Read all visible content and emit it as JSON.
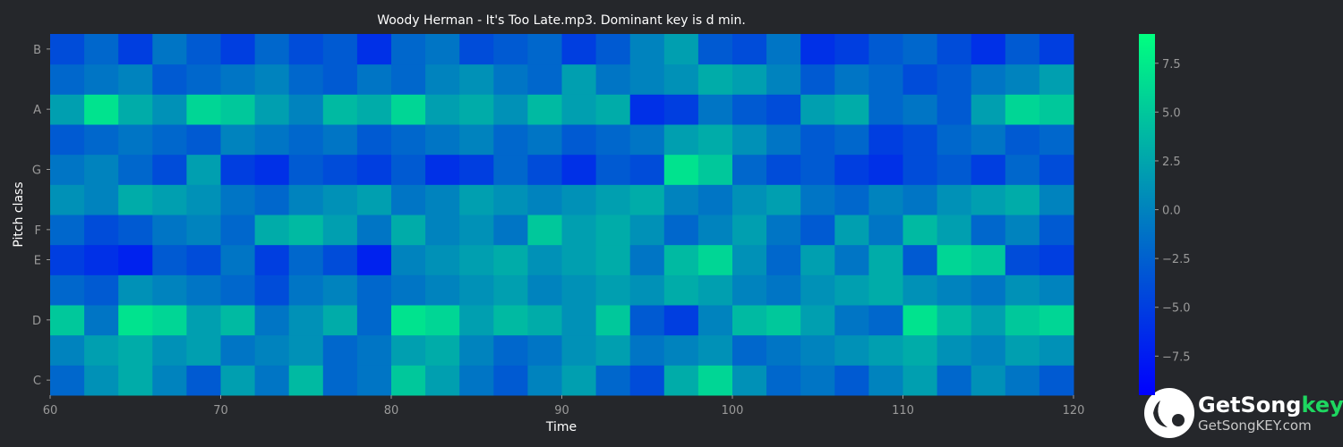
{
  "chart_data": {
    "type": "heatmap",
    "title": "Woody Herman - It's Too Late.mp3. Dominant key is d min.",
    "xlabel": "Time",
    "ylabel": "Pitch class",
    "x": [
      61,
      63,
      65,
      67,
      69,
      71,
      73,
      75,
      77,
      79,
      81,
      83,
      85,
      87,
      89,
      91,
      93,
      95,
      97,
      99,
      101,
      103,
      105,
      107,
      109,
      111,
      113,
      115,
      117,
      119
    ],
    "categories": [
      "C",
      null,
      "D",
      null,
      "E",
      "F",
      null,
      "G",
      null,
      "A",
      null,
      "B"
    ],
    "z": [
      [
        -2,
        1,
        3,
        0,
        -3,
        2,
        -1,
        4,
        -2,
        -1,
        5,
        2,
        -1,
        -3,
        0,
        2,
        -2,
        -4,
        3,
        6,
        1,
        -2,
        -1,
        -3,
        0,
        2,
        -2,
        1,
        -1,
        -3
      ],
      [
        0,
        2,
        3,
        1,
        2,
        -1,
        0,
        1,
        -2,
        -1,
        2,
        3,
        0,
        -2,
        -1,
        1,
        2,
        -1,
        0,
        1,
        -2,
        -1,
        0,
        1,
        2,
        3,
        1,
        0,
        2,
        1
      ],
      [
        5,
        -1,
        7,
        6,
        2,
        4,
        -1,
        1,
        3,
        -2,
        7,
        6,
        2,
        4,
        3,
        1,
        5,
        -3,
        -5,
        0,
        4,
        5,
        2,
        -1,
        -2,
        7,
        4,
        2,
        5,
        6
      ],
      [
        -2,
        -3,
        1,
        0,
        -1,
        -2,
        -4,
        -1,
        0,
        -2,
        -1,
        0,
        1,
        2,
        0,
        1,
        2,
        1,
        3,
        2,
        0,
        -1,
        1,
        2,
        3,
        1,
        0,
        -1,
        1,
        0
      ],
      [
        -5,
        -6,
        -7,
        -3,
        -4,
        -1,
        -5,
        -2,
        -4,
        -7,
        0,
        1,
        2,
        3,
        1,
        2,
        3,
        -1,
        4,
        6,
        1,
        -2,
        2,
        -1,
        3,
        -3,
        6,
        5,
        -4,
        -5
      ],
      [
        -2,
        -4,
        -3,
        -1,
        0,
        -2,
        3,
        4,
        2,
        -1,
        3,
        0,
        1,
        -1,
        5,
        2,
        3,
        1,
        -2,
        0,
        2,
        -1,
        -3,
        2,
        -1,
        4,
        2,
        -2,
        0,
        -3
      ],
      [
        1,
        0,
        3,
        2,
        1,
        -1,
        -2,
        0,
        1,
        2,
        -1,
        0,
        2,
        1,
        0,
        1,
        2,
        3,
        0,
        -1,
        1,
        2,
        -1,
        -2,
        0,
        -1,
        1,
        2,
        3,
        0
      ],
      [
        -1,
        0,
        -2,
        -4,
        2,
        -5,
        -6,
        -3,
        -4,
        -5,
        -3,
        -6,
        -5,
        -2,
        -4,
        -6,
        -3,
        -4,
        7,
        5,
        -2,
        -4,
        -3,
        -5,
        -6,
        -4,
        -3,
        -5,
        -2,
        -4
      ],
      [
        -3,
        -2,
        -1,
        -2,
        -3,
        0,
        -1,
        -2,
        -1,
        -3,
        -2,
        -1,
        0,
        -2,
        -1,
        -3,
        -2,
        -1,
        2,
        3,
        1,
        -1,
        -3,
        -2,
        -5,
        -4,
        -2,
        -1,
        -3,
        -2
      ],
      [
        2,
        7,
        3,
        1,
        6,
        5,
        2,
        0,
        4,
        3,
        6,
        2,
        3,
        1,
        4,
        2,
        3,
        -6,
        -5,
        -1,
        -3,
        -4,
        2,
        3,
        -2,
        -1,
        -3,
        2,
        6,
        5
      ],
      [
        -2,
        -1,
        0,
        -3,
        -2,
        -1,
        0,
        -2,
        -3,
        -1,
        -2,
        0,
        1,
        -1,
        -2,
        2,
        -1,
        0,
        1,
        3,
        2,
        0,
        -3,
        -1,
        -2,
        -4,
        -3,
        -1,
        0,
        2
      ],
      [
        -4,
        -2,
        -5,
        -1,
        -3,
        -5,
        -2,
        -4,
        -3,
        -6,
        -2,
        -1,
        -4,
        -3,
        -2,
        -5,
        -3,
        0,
        2,
        -3,
        -4,
        -1,
        -6,
        -5,
        -3,
        -2,
        -4,
        -6,
        -3,
        -5
      ]
    ],
    "xlim": [
      60,
      120
    ],
    "xticks": [
      60,
      70,
      80,
      90,
      100,
      110,
      120
    ],
    "colormap": [
      "#0000ff",
      "#00ff80"
    ],
    "clim": [
      -9.5,
      9
    ],
    "cticks": [
      {
        "value": -7.5,
        "label": "−7.5"
      },
      {
        "value": -5,
        "label": "−5.0"
      },
      {
        "value": -2.5,
        "label": "−2.5"
      },
      {
        "value": 0,
        "label": "0.0"
      },
      2.5,
      {
        "value": 5,
        "label": "5.0"
      },
      {
        "value": 7.5,
        "label": "7.5"
      }
    ]
  },
  "watermark": {
    "brand": "GetSong",
    "brand_accent": "key",
    "url": "GetSongKEY.com"
  }
}
